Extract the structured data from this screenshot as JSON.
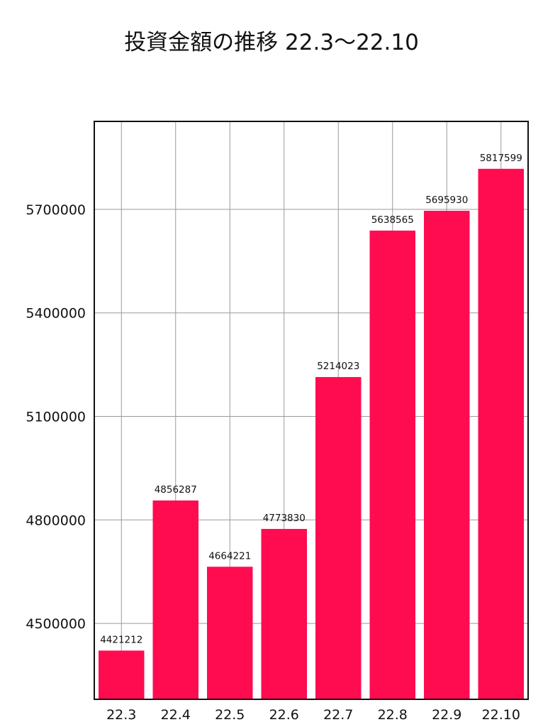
{
  "chart_data": {
    "type": "bar",
    "title": "投資金額の推移 22.3〜22.10",
    "xlabel": "",
    "ylabel": "",
    "categories": [
      "22.3",
      "22.4",
      "22.5",
      "22.6",
      "22.7",
      "22.8",
      "22.9",
      "22.10"
    ],
    "values": [
      4421212,
      4856287,
      4664221,
      4773830,
      5214023,
      5638565,
      5695930,
      5817599
    ],
    "data_labels": [
      "4421212",
      "4856287",
      "4664221",
      "4773830",
      "5214023",
      "5638565",
      "5695930",
      "5817599"
    ],
    "yticks": [
      4500000,
      4800000,
      5100000,
      5400000,
      5700000
    ],
    "ytick_labels": [
      "4500000",
      "4800000",
      "5100000",
      "5400000",
      "5700000"
    ],
    "ylim": [
      4280000,
      5955000
    ],
    "grid": true,
    "legend": "none",
    "bar_color": "#ff0b50",
    "grid_color": "#9a9a9a",
    "axis_color": "#111111"
  }
}
